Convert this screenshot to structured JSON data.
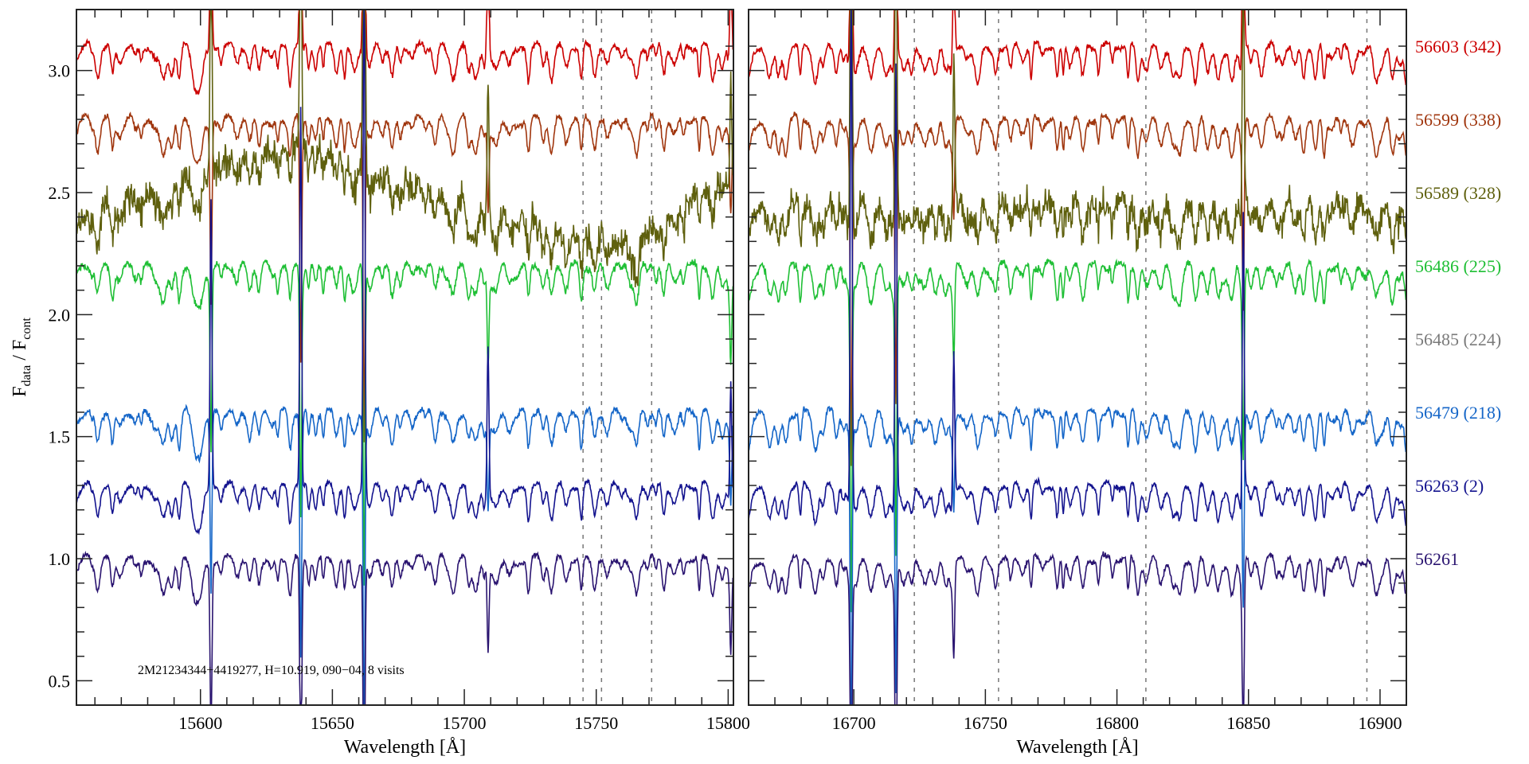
{
  "chart_data": {
    "type": "line",
    "title": "",
    "ylabel": {
      "main1": "F",
      "sub1": "data",
      "sep": " / ",
      "main2": "F",
      "sub2": "cont"
    },
    "ylim": [
      0.4,
      3.25
    ],
    "yticks": [
      0.5,
      1.0,
      1.5,
      2.0,
      2.5,
      3.0
    ],
    "ytick_labels": [
      "0.5",
      "1.0",
      "1.5",
      "2.0",
      "2.5",
      "3.0"
    ],
    "grid": false,
    "annotation": "2M21234344+4419277,    H=10.919,    090−04,    8 visits",
    "panels": [
      {
        "xlabel": "Wavelength [Å]",
        "xlim": [
          15553,
          15802
        ],
        "xticks": [
          15600,
          15650,
          15700,
          15750,
          15800
        ],
        "xtick_labels": [
          "15600",
          "15650",
          "15700",
          "15750",
          "15800"
        ],
        "dashed_lines": [
          15745,
          15752,
          15771
        ],
        "spikes": [
          [
            15604,
            1.2
          ],
          [
            15638,
            1.6
          ],
          [
            15662,
            2.2
          ],
          [
            15709,
            0.6
          ],
          [
            15801,
            0.5
          ]
        ]
      },
      {
        "xlabel": "Wavelength [Å]",
        "xlim": [
          16660,
          16910
        ],
        "xticks": [
          16700,
          16750,
          16800,
          16850,
          16900
        ],
        "xtick_labels": [
          "16700",
          "16750",
          "16800",
          "16850",
          "16900"
        ],
        "dashed_lines": [
          16723,
          16755,
          16811,
          16895
        ],
        "spikes": [
          [
            16699,
            2.2
          ],
          [
            16716,
            1.8
          ],
          [
            16738,
            0.6
          ],
          [
            16848,
            1.2
          ]
        ]
      }
    ],
    "series": [
      {
        "name": "56603 (342)",
        "color": "#cc0000",
        "offset": 3.1,
        "noise": 0.012,
        "drawn": true
      },
      {
        "name": "56599 (338)",
        "color": "#a0360e",
        "offset": 2.8,
        "noise": 0.012,
        "drawn": true
      },
      {
        "name": "56589 (328)",
        "color": "#5f600e",
        "offset": 2.5,
        "noise": 0.06,
        "drawn": true,
        "trend": [
          [
            15553,
            2.38
          ],
          [
            15600,
            2.6
          ],
          [
            15640,
            2.7
          ],
          [
            15700,
            2.45
          ],
          [
            15740,
            2.33
          ],
          [
            15765,
            2.3
          ],
          [
            15802,
            2.6
          ],
          [
            16660,
            2.45
          ],
          [
            16910,
            2.45
          ]
        ]
      },
      {
        "name": "56486 (225)",
        "color": "#1fbf35",
        "offset": 2.2,
        "noise": 0.014,
        "drawn": true
      },
      {
        "name": "56485 (224)",
        "color": "#7a7a7a",
        "offset": 1.9,
        "noise": 0.0,
        "drawn": false
      },
      {
        "name": "56479 (218)",
        "color": "#1566c8",
        "offset": 1.6,
        "noise": 0.012,
        "drawn": true
      },
      {
        "name": "56263 (2)",
        "color": "#14148f",
        "offset": 1.3,
        "noise": 0.01,
        "drawn": true
      },
      {
        "name": "56261",
        "color": "#2a1470",
        "offset": 1.0,
        "noise": 0.01,
        "drawn": true
      }
    ]
  }
}
